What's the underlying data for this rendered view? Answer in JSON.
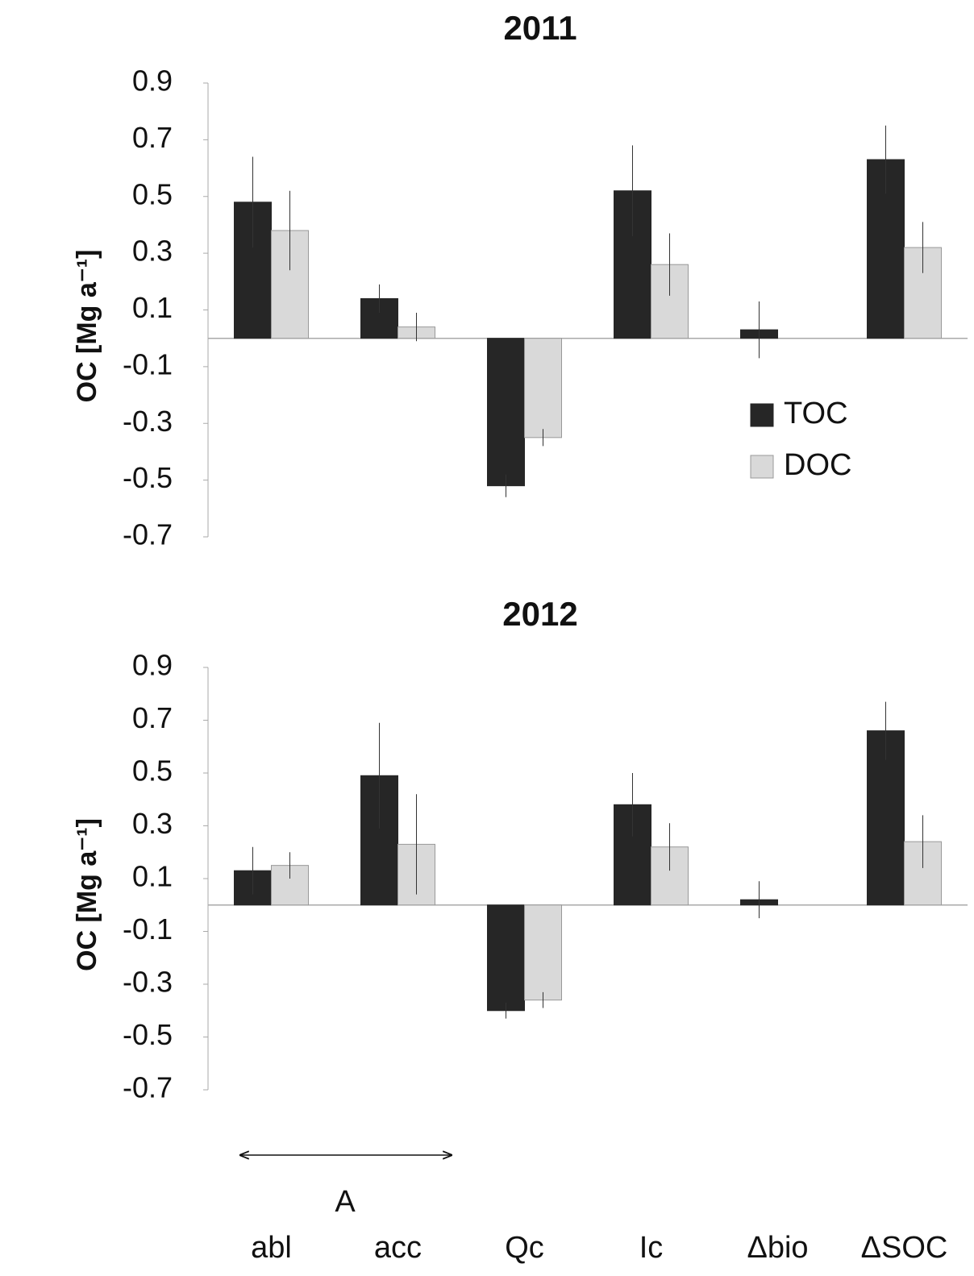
{
  "chart_data": [
    {
      "type": "bar",
      "title": "2011",
      "y_label": "OC [Mg a⁻¹]",
      "ylim": [
        -0.7,
        0.9
      ],
      "yticks": [
        0.9,
        0.7,
        0.5,
        0.3,
        0.1,
        -0.1,
        -0.3,
        -0.5,
        -0.7
      ],
      "legend": true,
      "series": [
        {
          "name": "TOC",
          "color": "#262626",
          "values": [
            0.48,
            0.14,
            -0.52,
            0.52,
            0.03,
            0.63
          ],
          "errors": [
            0.16,
            0.05,
            0.04,
            0.16,
            0.1,
            0.12
          ]
        },
        {
          "name": "DOC",
          "color": "#d9d9d9",
          "values": [
            0.38,
            0.04,
            -0.35,
            0.26,
            null,
            0.32
          ],
          "errors": [
            0.14,
            0.05,
            0.03,
            0.11,
            null,
            0.09
          ]
        }
      ]
    },
    {
      "type": "bar",
      "title": "2012",
      "y_label": "OC [Mg a⁻¹]",
      "ylim": [
        -0.7,
        0.9
      ],
      "yticks": [
        0.9,
        0.7,
        0.5,
        0.3,
        0.1,
        -0.1,
        -0.3,
        -0.5,
        -0.7
      ],
      "categories": [
        "abl",
        "acc",
        "Qc",
        "Ic",
        "Δbio",
        "ΔSOC"
      ],
      "annotation": "A",
      "series": [
        {
          "color": "#262626",
          "values": [
            0.13,
            0.49,
            -0.4,
            0.38,
            0.02,
            0.66
          ],
          "errors": [
            0.09,
            0.2,
            0.03,
            0.12,
            0.07,
            0.11
          ]
        },
        {
          "color": "#d9d9d9",
          "values": [
            0.15,
            0.23,
            -0.36,
            0.22,
            null,
            0.24
          ],
          "errors": [
            0.05,
            0.19,
            0.03,
            0.09,
            null,
            0.1
          ]
        }
      ]
    }
  ]
}
